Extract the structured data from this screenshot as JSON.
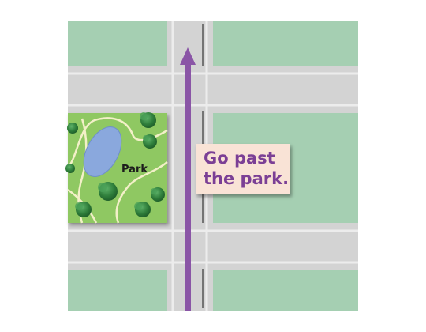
{
  "park": {
    "label": "Park"
  },
  "direction": {
    "line1": "Go past",
    "line2": "the park."
  },
  "route": {
    "heading": "north"
  },
  "colors": {
    "block_green": "#a5cfb2",
    "road_gray": "#d3d3d3",
    "road_edge": "#e9e9e9",
    "park_grass": "#8fc862",
    "pond": "#8aa8dd",
    "tree": "#2e7d3a",
    "route_purple": "#8a55a6",
    "label_bg": "#f9e3d6",
    "label_text": "#7b3f95"
  },
  "icons": {
    "route": "north-arrow-icon",
    "tree": "tree-icon",
    "pond": "pond-icon"
  }
}
